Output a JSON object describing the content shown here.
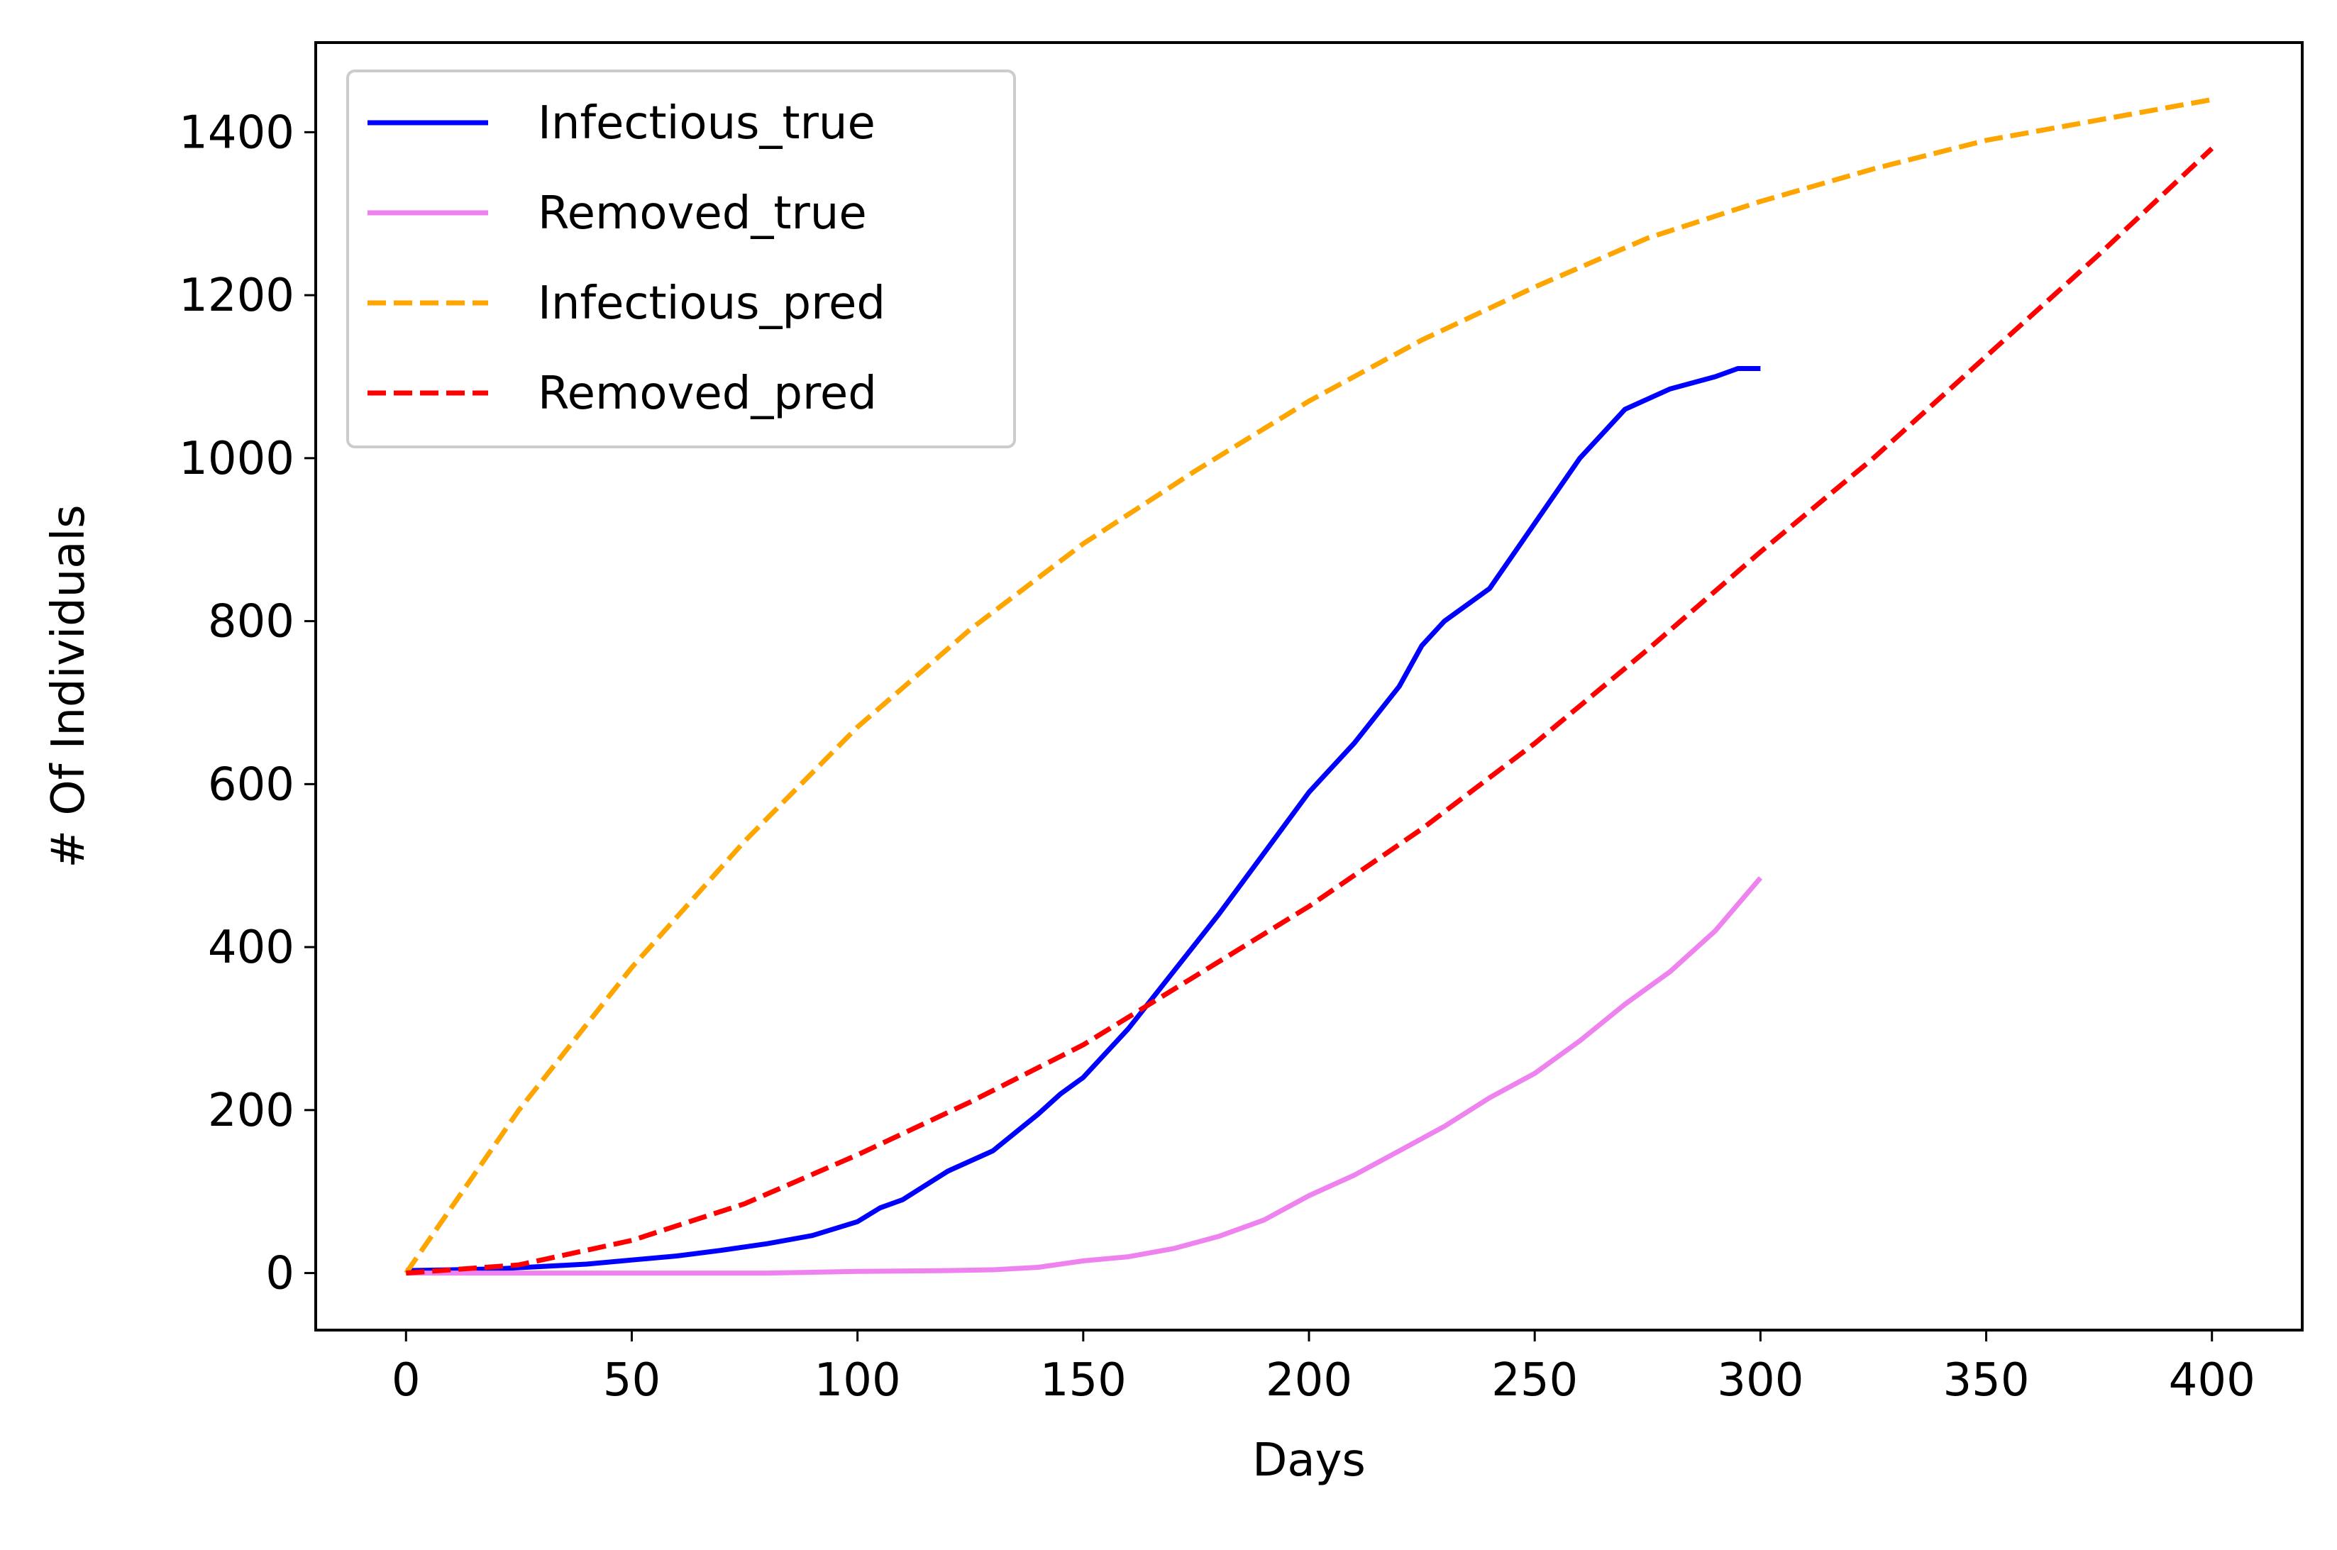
{
  "chart_data": {
    "type": "line",
    "title": "",
    "xlabel": "Days",
    "ylabel": "# Of Individuals",
    "xlim": [
      -20,
      420
    ],
    "ylim": [
      -70,
      1510
    ],
    "xticks": [
      0,
      50,
      100,
      150,
      200,
      250,
      300,
      350,
      400
    ],
    "yticks": [
      0,
      200,
      400,
      600,
      800,
      1000,
      1200,
      1400
    ],
    "grid": false,
    "legend_position": "upper-left",
    "series": [
      {
        "name": "Infectious_true",
        "color": "#0000ff",
        "style": "solid",
        "x": [
          0,
          10,
          20,
          30,
          40,
          50,
          60,
          70,
          80,
          90,
          100,
          105,
          110,
          120,
          130,
          140,
          145,
          150,
          160,
          170,
          180,
          190,
          200,
          210,
          220,
          225,
          230,
          240,
          250,
          260,
          270,
          280,
          290,
          295,
          300
        ],
        "y": [
          3,
          4,
          5,
          8,
          11,
          16,
          21,
          28,
          36,
          46,
          63,
          80,
          90,
          125,
          150,
          195,
          220,
          240,
          300,
          370,
          440,
          515,
          590,
          650,
          720,
          770,
          800,
          840,
          920,
          1000,
          1060,
          1085,
          1100,
          1110,
          1110
        ]
      },
      {
        "name": "Removed_true",
        "color": "#ee82ee",
        "style": "solid",
        "x": [
          0,
          20,
          40,
          60,
          80,
          100,
          120,
          130,
          140,
          150,
          160,
          170,
          180,
          190,
          200,
          210,
          220,
          230,
          240,
          250,
          260,
          270,
          280,
          290,
          300
        ],
        "y": [
          0,
          0,
          0,
          0,
          0,
          2,
          3,
          4,
          7,
          15,
          20,
          30,
          45,
          65,
          95,
          120,
          150,
          180,
          215,
          245,
          285,
          330,
          370,
          420,
          485
        ]
      },
      {
        "name": "Infectious_pred",
        "color": "#ffa500",
        "style": "dashed",
        "x": [
          0,
          25,
          50,
          75,
          100,
          125,
          150,
          175,
          200,
          225,
          250,
          275,
          300,
          325,
          350,
          375,
          400
        ],
        "y": [
          0,
          200,
          375,
          530,
          670,
          790,
          895,
          985,
          1070,
          1145,
          1210,
          1270,
          1315,
          1355,
          1390,
          1415,
          1440
        ]
      },
      {
        "name": "Removed_pred",
        "color": "#ff0000",
        "style": "dashed",
        "x": [
          0,
          25,
          50,
          75,
          100,
          125,
          150,
          175,
          200,
          225,
          250,
          275,
          300,
          325,
          350,
          375,
          400
        ],
        "y": [
          0,
          10,
          40,
          85,
          145,
          210,
          280,
          365,
          450,
          545,
          650,
          765,
          885,
          1000,
          1125,
          1250,
          1380
        ]
      }
    ]
  }
}
